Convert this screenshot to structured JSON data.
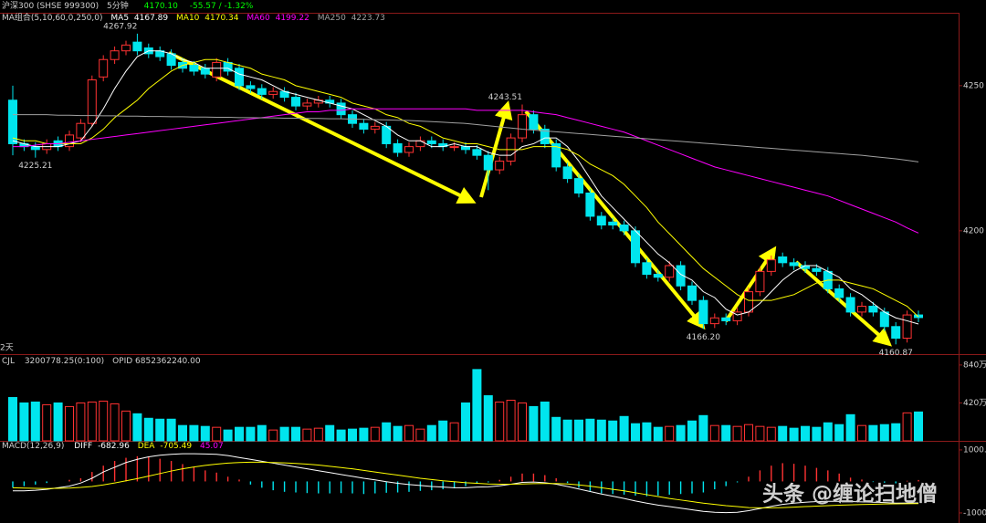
{
  "chart_data": [
    {
      "type": "candlestick",
      "title": "沪深300 (SHSE 999300)",
      "period": "5分钟",
      "price": "4170.10",
      "change": "-55.57 / -1.32%",
      "ma_title": "MA组合(5,10,60,0,250,0)",
      "side_label": "2天",
      "up_color": "#ff3232",
      "down_color": "#00e5ee",
      "ylim": [
        4157.5,
        4274.8
      ],
      "yticks": [
        4250,
        4200
      ],
      "open": [
        4245,
        4230,
        4229,
        4228,
        4231,
        4229,
        4232,
        4237,
        4253,
        4259,
        4262,
        4265,
        4263,
        4262,
        4261,
        4258,
        4257,
        4256,
        4253,
        4258,
        4256,
        4250,
        4249,
        4247,
        4248,
        4246,
        4243,
        4244,
        4245,
        4244,
        4240,
        4237,
        4235,
        4236,
        4230,
        4227,
        4229,
        4231,
        4230,
        4229,
        4229,
        4228,
        4226,
        4221,
        4224,
        4232,
        4240,
        4235,
        4230,
        4222,
        4218,
        4213,
        4205,
        4203,
        4202,
        4200,
        4189,
        4185,
        4184,
        4188,
        4181,
        4176,
        4168,
        4170,
        4169,
        4172,
        4179,
        4186,
        4191,
        4189,
        4188,
        4187,
        4186,
        4180,
        4177,
        4172,
        4174,
        4172,
        4167,
        4163,
        4171
      ],
      "high": [
        4250,
        4231.5,
        4230.5,
        4231.5,
        4232.5,
        4234.5,
        4238.5,
        4253.5,
        4260.5,
        4263.5,
        4265.5,
        4267.92,
        4264.5,
        4263.5,
        4262.5,
        4259.5,
        4258.5,
        4257.5,
        4259.5,
        4259.5,
        4257.5,
        4251.5,
        4250.5,
        4249.5,
        4249.5,
        4247.5,
        4245.5,
        4246.5,
        4246.5,
        4245.5,
        4241.5,
        4238.5,
        4237.5,
        4237.5,
        4231.5,
        4230.5,
        4232.5,
        4232.5,
        4231.5,
        4230.5,
        4230.5,
        4229.5,
        4227.5,
        4225.5,
        4233.5,
        4243.51,
        4241.5,
        4236.5,
        4231.5,
        4223.5,
        4219.5,
        4214.5,
        4206.5,
        4204.5,
        4203.5,
        4201.5,
        4190.5,
        4186.5,
        4189.5,
        4189.5,
        4182.5,
        4177.5,
        4171.5,
        4171.5,
        4173.5,
        4180.5,
        4187.5,
        4191.5,
        4192.5,
        4190.5,
        4189.5,
        4188.5,
        4187.5,
        4181.5,
        4178.5,
        4175.5,
        4175.5,
        4173.5,
        4168.5,
        4172.5,
        4172.5
      ],
      "low": [
        4226,
        4227.5,
        4225.21,
        4226.5,
        4227.5,
        4227.5,
        4230.5,
        4236,
        4251.5,
        4257.5,
        4260.5,
        4260.5,
        4259.5,
        4258.5,
        4255.5,
        4254.5,
        4253.5,
        4252.5,
        4251.5,
        4253.5,
        4248.5,
        4247.5,
        4245.5,
        4245.5,
        4244.5,
        4241.5,
        4241.5,
        4242.5,
        4242.5,
        4238.5,
        4235.5,
        4233.5,
        4233.5,
        4228.5,
        4225.5,
        4225.5,
        4227.5,
        4228.5,
        4227.5,
        4227.5,
        4226.5,
        4224.5,
        4214,
        4219.5,
        4222.5,
        4230.5,
        4233.5,
        4228.5,
        4220.5,
        4216.5,
        4211.5,
        4203.5,
        4200.5,
        4200.5,
        4198.5,
        4187.5,
        4183.5,
        4182.5,
        4182.5,
        4179.5,
        4174.5,
        4166.2,
        4166.5,
        4167.5,
        4167.5,
        4170.5,
        4177.5,
        4184.5,
        4187.5,
        4186.5,
        4185.5,
        4184.5,
        4178.5,
        4175.5,
        4170.5,
        4170.5,
        4170.5,
        4165.5,
        4160.87,
        4161.5,
        4168.5
      ],
      "close": [
        4230,
        4229,
        4228,
        4230,
        4229,
        4233,
        4237,
        4252,
        4259,
        4262,
        4264,
        4262,
        4261,
        4260,
        4257,
        4256,
        4255,
        4254,
        4258,
        4255,
        4250,
        4249,
        4247,
        4248,
        4246,
        4243,
        4244,
        4245,
        4244,
        4240,
        4237,
        4235,
        4236,
        4230,
        4227,
        4229,
        4231,
        4230,
        4229,
        4229,
        4228,
        4226,
        4221,
        4224,
        4232,
        4240,
        4235,
        4230,
        4222,
        4218,
        4213,
        4205,
        4202,
        4202,
        4200,
        4189,
        4185,
        4184,
        4188,
        4181,
        4176,
        4168,
        4170,
        4169,
        4172,
        4179,
        4186,
        4190,
        4189,
        4188,
        4187,
        4186,
        4180,
        4177,
        4172,
        4174,
        4172,
        4167,
        4163,
        4171,
        4170.1
      ],
      "annotations": [
        "4267.92",
        "4225.21",
        "4243.51",
        "4166.20",
        "4160.87"
      ],
      "series": [
        {
          "name": "MA5",
          "color": "#ffffff",
          "values": [
            4231,
            4230,
            4229,
            4229,
            4229,
            4230,
            4231,
            4236,
            4242,
            4249,
            4255,
            4260,
            4262,
            4262,
            4261,
            4259,
            4258,
            4256,
            4256,
            4256,
            4254,
            4253,
            4252,
            4250,
            4248,
            4247,
            4246,
            4245,
            4244,
            4243,
            4242,
            4240,
            4238,
            4236,
            4233,
            4231,
            4231,
            4229,
            4229,
            4230,
            4229,
            4229,
            4227,
            4226,
            4226,
            4229,
            4230,
            4232,
            4232,
            4229,
            4224,
            4218,
            4212,
            4208,
            4204,
            4200,
            4196,
            4192,
            4189,
            4185,
            4183,
            4179,
            4177,
            4173,
            4171,
            4172,
            4175,
            4179,
            4183,
            4186,
            4188,
            4188,
            4186,
            4184,
            4180,
            4178,
            4175,
            4172,
            4170,
            4169,
            4167.89
          ]
        },
        {
          "name": "MA10",
          "color": "#ffff00",
          "values": [
            4232,
            4231,
            4231,
            4230,
            4230,
            4230,
            4230,
            4232,
            4235,
            4239,
            4242,
            4245,
            4249,
            4252,
            4255,
            4257,
            4258,
            4259,
            4259,
            4258,
            4257,
            4256,
            4254,
            4253,
            4252,
            4250,
            4249,
            4248,
            4247,
            4246,
            4244,
            4243,
            4242,
            4240,
            4239,
            4237,
            4236,
            4234,
            4232,
            4231,
            4230,
            4230,
            4229,
            4228,
            4228,
            4228,
            4229,
            4229,
            4229,
            4228,
            4226,
            4223,
            4221,
            4219,
            4216,
            4212,
            4208,
            4203,
            4199,
            4195,
            4191,
            4187,
            4184,
            4181,
            4178,
            4176,
            4176,
            4176,
            4177,
            4178,
            4180,
            4182,
            4183,
            4183,
            4182,
            4181,
            4180,
            4178,
            4176,
            4174,
            4170.34
          ]
        },
        {
          "name": "MA60",
          "color": "#ff00ff",
          "values": [
            4229,
            4229,
            4229.5,
            4230,
            4230,
            4230.5,
            4231,
            4231.5,
            4232,
            4232.5,
            4233,
            4233.5,
            4234,
            4234.5,
            4235,
            4235.5,
            4236,
            4236.5,
            4237,
            4237.5,
            4238,
            4238.5,
            4239,
            4239.5,
            4240,
            4240.5,
            4241,
            4241,
            4241.5,
            4241.5,
            4242,
            4242,
            4242,
            4242,
            4242,
            4242,
            4242,
            4242,
            4242,
            4242,
            4242,
            4241.5,
            4241.5,
            4241.5,
            4241.5,
            4241.5,
            4241,
            4240.5,
            4240,
            4239,
            4238,
            4237,
            4236,
            4235,
            4234,
            4232.5,
            4231,
            4229.5,
            4228,
            4226.5,
            4225,
            4223.5,
            4222,
            4221,
            4220,
            4219,
            4218,
            4217,
            4216,
            4215,
            4214,
            4213,
            4212,
            4210.5,
            4209,
            4207.5,
            4206,
            4204.5,
            4203,
            4201,
            4199.22
          ]
        },
        {
          "name": "MA250",
          "color": "#a0a0a0",
          "values": [
            4240,
            4240,
            4240,
            4240,
            4239.8,
            4239.8,
            4239.7,
            4239.7,
            4239.6,
            4239.6,
            4239.5,
            4239.5,
            4239.4,
            4239.4,
            4239.3,
            4239.3,
            4239.2,
            4239.2,
            4239.1,
            4239.1,
            4239,
            4239,
            4238.9,
            4238.9,
            4238.8,
            4238.8,
            4238.7,
            4238.7,
            4238.6,
            4238.6,
            4238.5,
            4238.4,
            4238.3,
            4238.2,
            4238.1,
            4238,
            4237.8,
            4237.6,
            4237.4,
            4237.2,
            4237,
            4236.6,
            4236.2,
            4235.8,
            4235.4,
            4235,
            4234.7,
            4234.4,
            4234.1,
            4233.8,
            4233.5,
            4233.2,
            4232.9,
            4232.6,
            4232.3,
            4232,
            4231.7,
            4231.4,
            4231.1,
            4230.8,
            4230.5,
            4230.2,
            4229.9,
            4229.6,
            4229.3,
            4229,
            4228.7,
            4228.4,
            4228.1,
            4227.8,
            4227.5,
            4227.2,
            4226.9,
            4226.6,
            4226.3,
            4226,
            4225.6,
            4225.2,
            4224.8,
            4224.3,
            4223.73
          ]
        }
      ]
    },
    {
      "type": "volume",
      "title": "CJL",
      "info": "3200778.25(0:100)",
      "opid": "OPID 6852362240.00",
      "ylim": [
        0,
        920
      ],
      "yticks": [
        {
          "value": 840,
          "label": "840万"
        },
        {
          "value": 420,
          "label": "420万"
        }
      ],
      "values": [
        480,
        420,
        430,
        400,
        420,
        380,
        420,
        430,
        440,
        410,
        330,
        300,
        250,
        240,
        240,
        170,
        170,
        160,
        150,
        120,
        150,
        150,
        170,
        120,
        150,
        150,
        130,
        140,
        170,
        120,
        130,
        140,
        150,
        200,
        160,
        170,
        130,
        170,
        220,
        200,
        420,
        790,
        500,
        430,
        450,
        420,
        380,
        430,
        260,
        230,
        230,
        240,
        230,
        220,
        270,
        190,
        200,
        150,
        160,
        170,
        220,
        280,
        170,
        170,
        160,
        180,
        160,
        150,
        160,
        140,
        160,
        150,
        200,
        180,
        290,
        170,
        170,
        180,
        190,
        310,
        320
      ]
    },
    {
      "type": "macd",
      "title": "MACD(12,26,9)",
      "ylim": [
        -1320,
        1230
      ],
      "yticks": [
        {
          "value": 1000,
          "label": "1000.00"
        },
        {
          "value": -1000,
          "label": "-1000.00"
        }
      ],
      "values": [
        -200,
        -150,
        -100,
        -50,
        0,
        50,
        100,
        300,
        500,
        650,
        750,
        800,
        780,
        720,
        650,
        550,
        450,
        350,
        280,
        150,
        60,
        -100,
        -200,
        -280,
        -330,
        -350,
        -370,
        -380,
        -380,
        -370,
        -380,
        -400,
        -380,
        -360,
        -350,
        -330,
        -300,
        -280,
        -250,
        -220,
        -150,
        -50,
        -30,
        50,
        150,
        250,
        250,
        200,
        100,
        -50,
        -200,
        -300,
        -380,
        -400,
        -420,
        -450,
        -470,
        -450,
        -420,
        -400,
        -380,
        -350,
        -250,
        -150,
        -30,
        150,
        350,
        500,
        580,
        560,
        500,
        430,
        350,
        250,
        120,
        60,
        -20,
        -40,
        -60,
        20,
        45.07
      ],
      "series": [
        {
          "name": "DIFF",
          "color": "#ffffff",
          "values": [
            -300,
            -300,
            -280,
            -250,
            -200,
            -150,
            -50,
            100,
            300,
            450,
            600,
            700,
            780,
            830,
            860,
            880,
            880,
            870,
            860,
            820,
            760,
            700,
            640,
            580,
            520,
            460,
            400,
            340,
            280,
            220,
            160,
            100,
            50,
            -10,
            -60,
            -100,
            -130,
            -160,
            -180,
            -200,
            -200,
            -180,
            -170,
            -140,
            -90,
            -30,
            -20,
            -40,
            -90,
            -160,
            -240,
            -320,
            -400,
            -470,
            -540,
            -620,
            -690,
            -750,
            -800,
            -850,
            -900,
            -950,
            -980,
            -990,
            -980,
            -930,
            -860,
            -790,
            -730,
            -690,
            -660,
            -640,
            -630,
            -630,
            -640,
            -650,
            -660,
            -670,
            -690,
            -685,
            -682.96
          ]
        },
        {
          "name": "DEA",
          "color": "#ffff00",
          "values": [
            -200,
            -210,
            -220,
            -225,
            -220,
            -210,
            -190,
            -160,
            -110,
            -50,
            20,
            90,
            170,
            250,
            330,
            400,
            460,
            510,
            550,
            580,
            600,
            610,
            610,
            600,
            590,
            570,
            550,
            520,
            480,
            440,
            400,
            350,
            300,
            250,
            200,
            150,
            100,
            60,
            20,
            -10,
            -40,
            -60,
            -80,
            -90,
            -90,
            -80,
            -70,
            -65,
            -65,
            -80,
            -110,
            -150,
            -200,
            -250,
            -300,
            -360,
            -420,
            -480,
            -540,
            -590,
            -640,
            -690,
            -730,
            -770,
            -800,
            -830,
            -840,
            -840,
            -830,
            -815,
            -800,
            -785,
            -770,
            -755,
            -745,
            -735,
            -725,
            -715,
            -710,
            -708,
            -705.49
          ]
        }
      ]
    }
  ],
  "watermark": "头条 @缠论扫地僧"
}
